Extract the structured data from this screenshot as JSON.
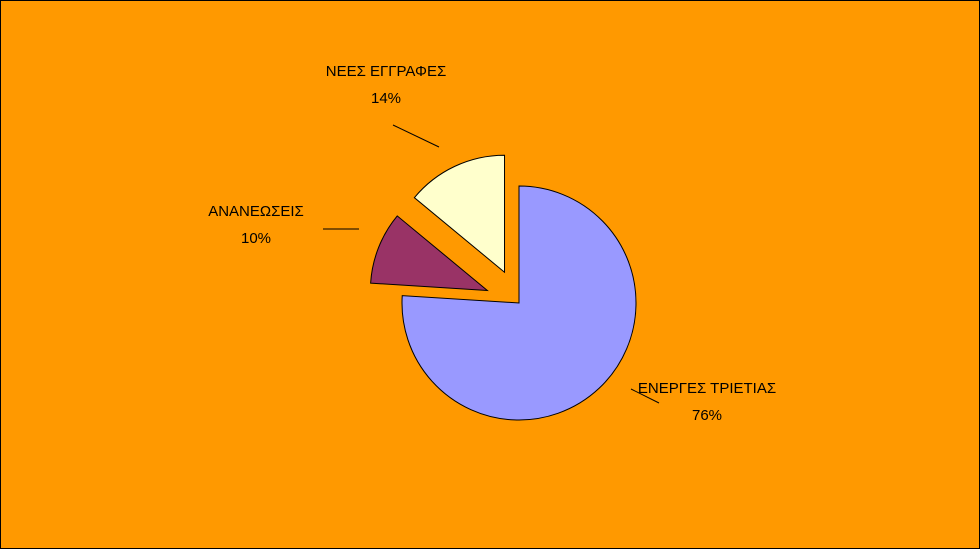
{
  "chart_data": {
    "type": "pie",
    "title": "",
    "background": "#ff9900",
    "slice_border": "#000000",
    "start_angle_deg": 0,
    "direction": "clockwise",
    "slices": [
      {
        "label": "ΕΝΕΡΓΕΣ ΤΡΙΕΤΙΑΣ",
        "value": 76,
        "value_label": "76%",
        "color": "#9999ff",
        "exploded": false
      },
      {
        "label": "ΑΝΑΝΕΩΣΕΙΣ",
        "value": 10,
        "value_label": "10%",
        "color": "#993366",
        "exploded": true
      },
      {
        "label": "ΝΕΕΣ ΕΓΓΡΑΦΕΣ",
        "value": 14,
        "value_label": "14%",
        "color": "#ffffcc",
        "exploded": true
      }
    ]
  }
}
